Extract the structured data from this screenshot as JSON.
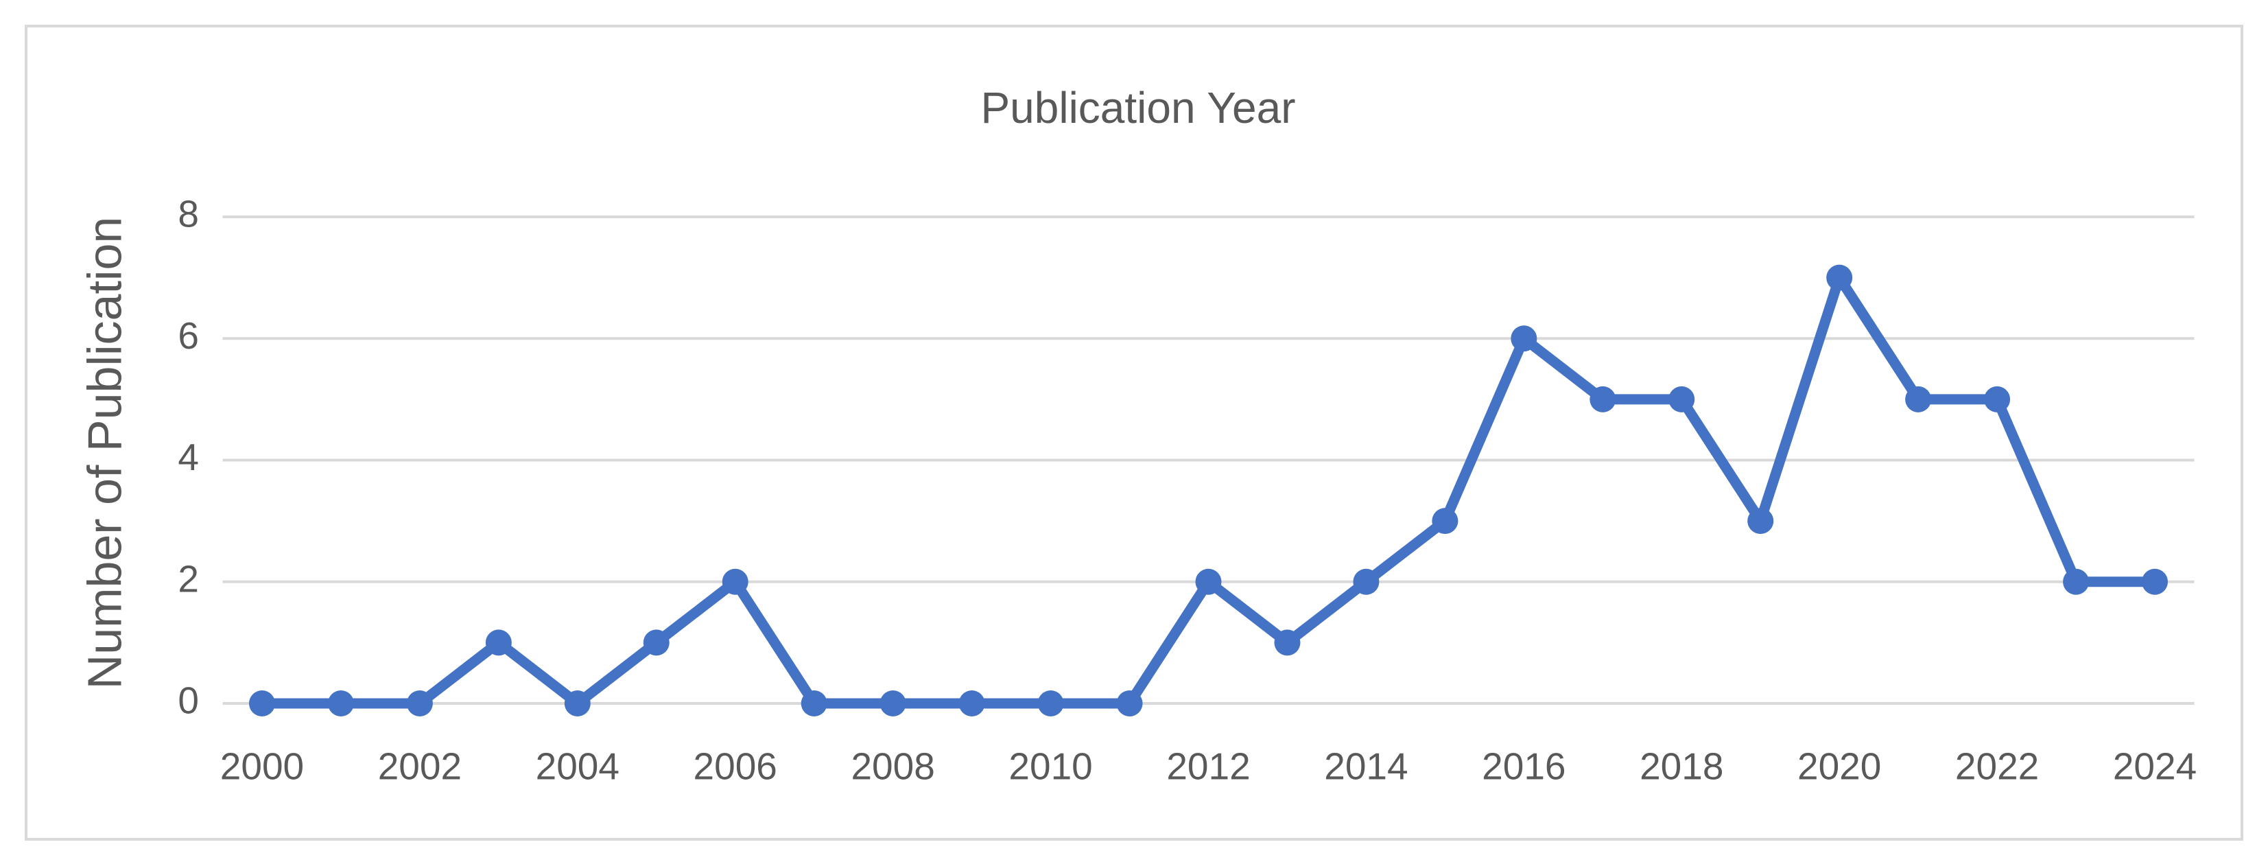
{
  "chart_data": {
    "type": "line",
    "title": "Publication Year",
    "y_label": "Number of Publication",
    "x": [
      2000,
      2001,
      2002,
      2003,
      2004,
      2005,
      2006,
      2007,
      2008,
      2009,
      2010,
      2011,
      2012,
      2013,
      2014,
      2015,
      2016,
      2017,
      2018,
      2019,
      2020,
      2021,
      2022,
      2023,
      2024
    ],
    "series": [
      {
        "name": "Number of Publication",
        "color": "#4472c4",
        "values": [
          0,
          0,
          0,
          1,
          0,
          1,
          2,
          0,
          0,
          0,
          0,
          0,
          2,
          1,
          2,
          3,
          6,
          5,
          5,
          3,
          7,
          5,
          5,
          2,
          2
        ]
      }
    ],
    "xlim": [
      1999.5,
      2024.5
    ],
    "xticks": [
      2000,
      2002,
      2004,
      2006,
      2008,
      2010,
      2012,
      2014,
      2016,
      2018,
      2020,
      2022,
      2024
    ],
    "ylim": [
      0,
      8
    ],
    "yticks": [
      0,
      2,
      4,
      6,
      8
    ],
    "grid": true
  }
}
